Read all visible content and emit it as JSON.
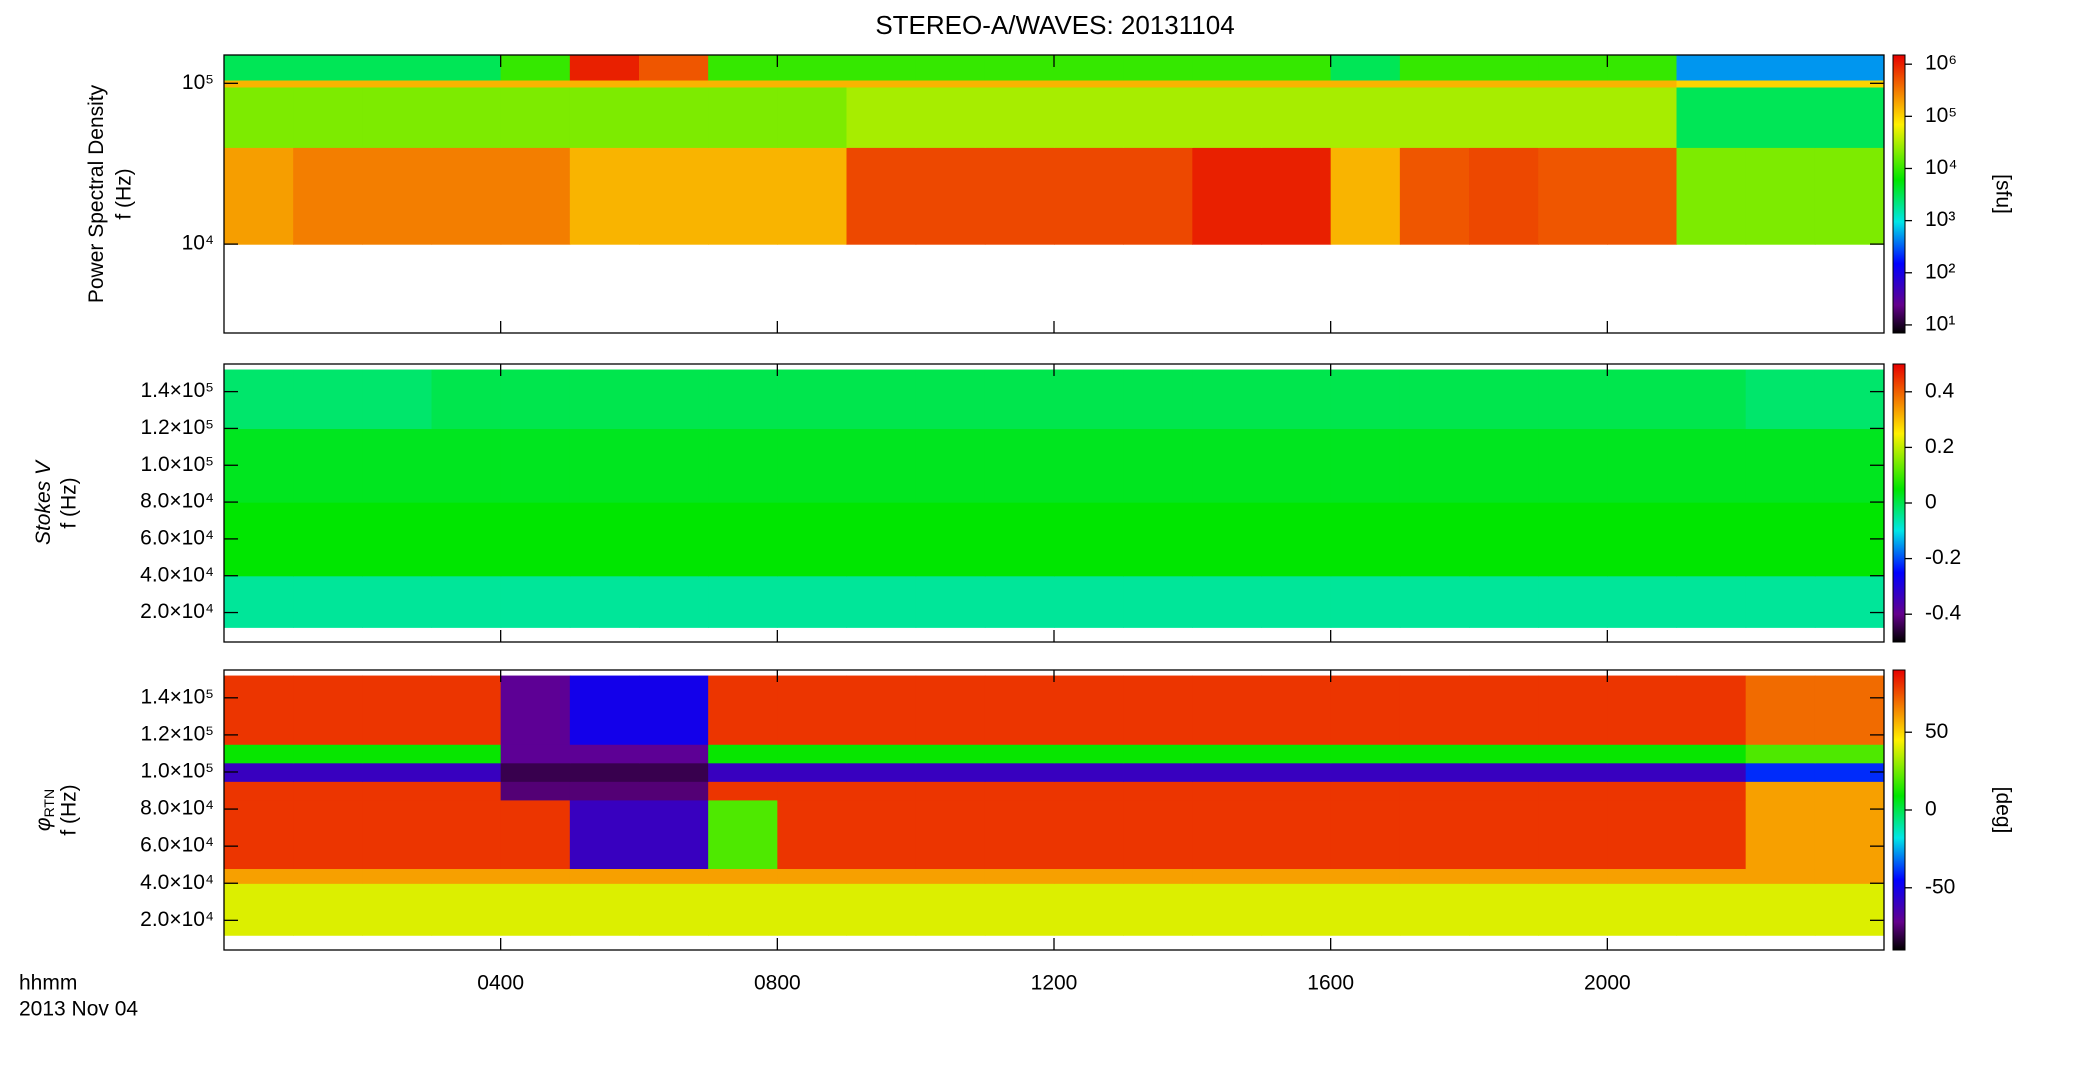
{
  "chart_data": [
    {
      "type": "heatmap",
      "title": "STEREO-A/WAVES: 20131104",
      "ylabel": "Power Spectral Density",
      "yunit": "f (Hz)",
      "ylog": true,
      "ylim": [
        2800,
        150000
      ],
      "yticks": [
        {
          "value": 10000,
          "label": "10⁴"
        },
        {
          "value": 100000,
          "label": "10⁵"
        }
      ],
      "xbins": [
        0,
        1,
        2,
        3,
        4,
        5,
        6,
        7,
        8,
        9,
        10,
        11,
        12,
        13,
        14,
        15,
        16,
        17,
        18,
        19,
        20,
        21,
        22,
        23,
        24
      ],
      "ybins": [
        10000,
        40000,
        95000,
        105000,
        150000
      ],
      "z": [
        [
          200000,
          300000,
          300000,
          300000,
          300000,
          150000,
          150000,
          150000,
          150000,
          600000,
          600000,
          600000,
          600000,
          600000,
          1000000,
          1000000,
          150000,
          500000,
          600000,
          500000,
          500000,
          20000,
          20000,
          20000
        ],
        [
          20000,
          20000,
          20000,
          20000,
          20000,
          20000,
          20000,
          20000,
          20000,
          30000,
          30000,
          30000,
          30000,
          30000,
          30000,
          30000,
          30000,
          30000,
          30000,
          30000,
          30000,
          3000,
          3000,
          3000
        ],
        [
          150000,
          150000,
          150000,
          150000,
          150000,
          150000,
          150000,
          150000,
          150000,
          150000,
          150000,
          150000,
          150000,
          150000,
          150000,
          150000,
          150000,
          150000,
          150000,
          150000,
          150000,
          100000,
          100000,
          100000
        ],
        [
          3000,
          3000,
          3000,
          3000,
          10000,
          1000000,
          500000,
          10000,
          10000,
          10000,
          10000,
          10000,
          10000,
          10000,
          10000,
          10000,
          3000,
          10000,
          10000,
          10000,
          10000,
          500,
          500,
          500
        ]
      ],
      "colorbar": {
        "log": true,
        "lim": [
          7,
          1500000
        ],
        "label": "[sfu]",
        "ticks": [
          {
            "value": 10,
            "label": "10¹"
          },
          {
            "value": 100,
            "label": "10²"
          },
          {
            "value": 1000,
            "label": "10³"
          },
          {
            "value": 10000,
            "label": "10⁴"
          },
          {
            "value": 100000,
            "label": "10⁵"
          },
          {
            "value": 1000000,
            "label": "10⁶"
          }
        ]
      },
      "colormap": [
        "#000000",
        "#64008c",
        "#0000ff",
        "#00e6e6",
        "#00e600",
        "#fff000",
        "#e60000"
      ]
    },
    {
      "type": "heatmap",
      "ylabel": "Stokes V",
      "yunit": "f (Hz)",
      "ylim": [
        4000,
        155000
      ],
      "yticks": [
        {
          "value": 20000,
          "label": "2.0×10⁴"
        },
        {
          "value": 40000,
          "label": "4.0×10⁴"
        },
        {
          "value": 60000,
          "label": "6.0×10⁴"
        },
        {
          "value": 80000,
          "label": "8.0×10⁴"
        },
        {
          "value": 100000,
          "label": "1.0×10⁵"
        },
        {
          "value": 120000,
          "label": "1.2×10⁵"
        },
        {
          "value": 140000,
          "label": "1.4×10⁵"
        }
      ],
      "xbins": [
        0,
        1,
        2,
        3,
        4,
        5,
        6,
        7,
        8,
        9,
        10,
        11,
        12,
        13,
        14,
        15,
        16,
        17,
        18,
        19,
        20,
        21,
        22,
        23,
        24
      ],
      "ybins": [
        12000,
        40000,
        80000,
        120000,
        152000
      ],
      "z": [
        [
          -0.05,
          -0.05,
          -0.05,
          -0.05,
          -0.05,
          -0.05,
          -0.05,
          -0.05,
          -0.05,
          -0.05,
          -0.05,
          -0.05,
          -0.05,
          -0.05,
          -0.05,
          -0.05,
          -0.05,
          -0.05,
          -0.05,
          -0.05,
          -0.05,
          -0.05,
          -0.05,
          -0.05
        ],
        [
          0.05,
          0.05,
          0.05,
          0.05,
          0.05,
          0.05,
          0.05,
          0.05,
          0.05,
          0.05,
          0.05,
          0.05,
          0.05,
          0.05,
          0.05,
          0.05,
          0.05,
          0.05,
          0.05,
          0.05,
          0.05,
          0.05,
          0.05,
          0.05
        ],
        [
          0.03,
          0.03,
          0.03,
          0.03,
          0.03,
          0.03,
          0.03,
          0.03,
          0.03,
          0.03,
          0.03,
          0.03,
          0.03,
          0.03,
          0.03,
          0.03,
          0.03,
          0.03,
          0.03,
          0.03,
          0.03,
          0.03,
          0.03,
          0.03
        ],
        [
          -0.02,
          -0.02,
          -0.02,
          0,
          0,
          0,
          0,
          0,
          0,
          0,
          0,
          0,
          0,
          0,
          0,
          0,
          0,
          0,
          0,
          0,
          0,
          0,
          -0.02,
          -0.02
        ]
      ],
      "colorbar": {
        "log": false,
        "lim": [
          -0.5,
          0.5
        ],
        "ticks": [
          -0.4,
          -0.2,
          0.0,
          0.2,
          0.4
        ]
      },
      "colormap": [
        "#000000",
        "#64008c",
        "#0000ff",
        "#00e6e6",
        "#00e600",
        "#fff000",
        "#e60000"
      ]
    },
    {
      "type": "heatmap",
      "ylabel": "φ",
      "ylabel_sub": "RTN",
      "yunit": "f (Hz)",
      "ylim": [
        4000,
        155000
      ],
      "yticks": [
        {
          "value": 20000,
          "label": "2.0×10⁴"
        },
        {
          "value": 40000,
          "label": "4.0×10⁴"
        },
        {
          "value": 60000,
          "label": "6.0×10⁴"
        },
        {
          "value": 80000,
          "label": "8.0×10⁴"
        },
        {
          "value": 100000,
          "label": "1.0×10⁵"
        },
        {
          "value": 120000,
          "label": "1.2×10⁵"
        },
        {
          "value": 140000,
          "label": "1.4×10⁵"
        }
      ],
      "xlim": [
        0,
        24
      ],
      "xticks": [
        {
          "value": 4,
          "label": "0400"
        },
        {
          "value": 8,
          "label": "0800"
        },
        {
          "value": 12,
          "label": "1200"
        },
        {
          "value": 16,
          "label": "1600"
        },
        {
          "value": 20,
          "label": "2000"
        }
      ],
      "xlabel": "hhmm",
      "date": "2013 Nov 04",
      "xbins": [
        0,
        1,
        2,
        3,
        4,
        5,
        6,
        7,
        8,
        9,
        10,
        11,
        12,
        13,
        14,
        15,
        16,
        17,
        18,
        19,
        20,
        21,
        22,
        23,
        24
      ],
      "ybins": [
        12000,
        40000,
        48000,
        85000,
        95000,
        105000,
        115000,
        152000
      ],
      "z": [
        [
          40,
          40,
          40,
          40,
          40,
          40,
          40,
          40,
          40,
          40,
          40,
          40,
          40,
          40,
          40,
          40,
          40,
          40,
          40,
          40,
          40,
          40,
          40,
          40
        ],
        [
          60,
          60,
          60,
          60,
          60,
          60,
          60,
          60,
          60,
          60,
          60,
          60,
          60,
          60,
          60,
          60,
          60,
          60,
          60,
          60,
          60,
          60,
          60,
          60
        ],
        [
          80,
          80,
          80,
          80,
          80,
          -60,
          -60,
          20,
          80,
          80,
          80,
          80,
          80,
          80,
          80,
          80,
          80,
          80,
          80,
          80,
          80,
          80,
          60,
          60
        ],
        [
          80,
          80,
          80,
          80,
          -75,
          -75,
          -75,
          80,
          80,
          80,
          80,
          80,
          80,
          80,
          80,
          80,
          80,
          80,
          80,
          80,
          80,
          80,
          60,
          60
        ],
        [
          -60,
          -60,
          -60,
          -60,
          -80,
          -80,
          -80,
          -60,
          -60,
          -60,
          -60,
          -60,
          -60,
          -60,
          -60,
          -60,
          -60,
          -60,
          -60,
          -60,
          -60,
          -60,
          -40,
          -40
        ],
        [
          10,
          10,
          10,
          10,
          -70,
          -70,
          -70,
          10,
          10,
          10,
          10,
          10,
          10,
          10,
          10,
          10,
          10,
          10,
          10,
          10,
          10,
          10,
          20,
          20
        ],
        [
          80,
          80,
          80,
          80,
          -70,
          -50,
          -50,
          80,
          80,
          80,
          80,
          80,
          80,
          80,
          80,
          80,
          80,
          80,
          80,
          80,
          80,
          80,
          70,
          70
        ]
      ],
      "colorbar": {
        "log": false,
        "lim": [
          -90,
          90
        ],
        "label": "[deg]",
        "ticks": [
          -50,
          0,
          50
        ]
      },
      "colormap": [
        "#000000",
        "#64008c",
        "#0000ff",
        "#00e6e6",
        "#00e600",
        "#fff000",
        "#e60000"
      ]
    }
  ]
}
